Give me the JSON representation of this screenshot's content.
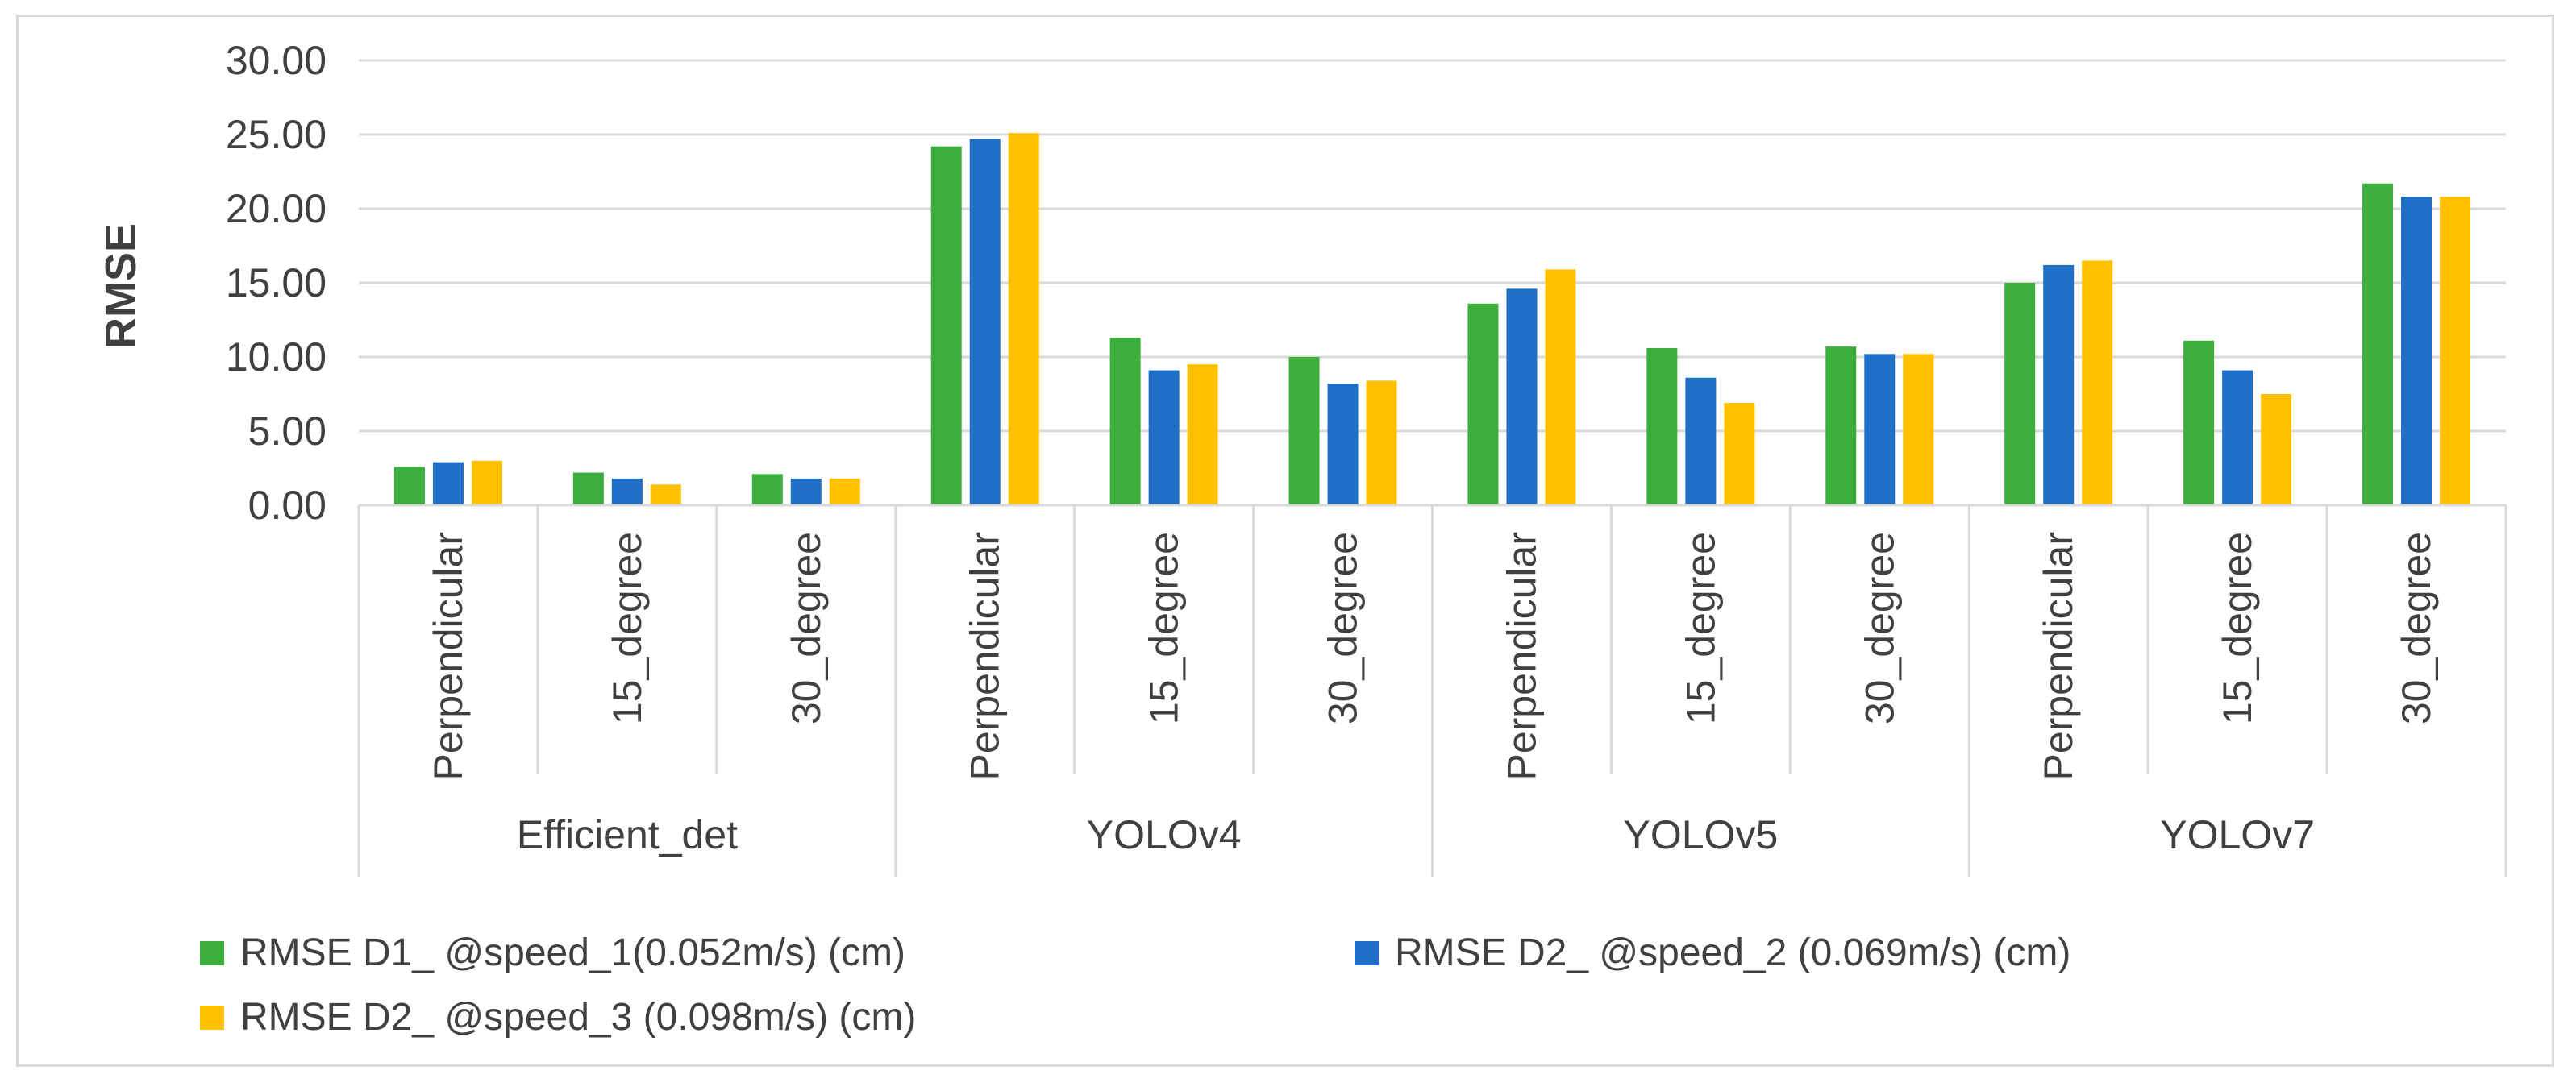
{
  "chart_data": {
    "type": "bar",
    "title": "",
    "xlabel": "",
    "ylabel": "RMSE",
    "ylim": [
      0,
      30
    ],
    "yticks": [
      "0.00",
      "5.00",
      "10.00",
      "15.00",
      "20.00",
      "25.00",
      "30.00"
    ],
    "grid": true,
    "legend_position": "bottom",
    "groups": [
      {
        "name": "Efficient_det",
        "categories": [
          "Perpendicular",
          "15_degree",
          "30_degree"
        ]
      },
      {
        "name": "YOLOv4",
        "categories": [
          "Perpendicular",
          "15_degree",
          "30_degree"
        ]
      },
      {
        "name": "YOLOv5",
        "categories": [
          "Perpendicular",
          "15_degree",
          "30_degree"
        ]
      },
      {
        "name": "YOLOv7",
        "categories": [
          "Perpendicular",
          "15_degree",
          "30_degree"
        ]
      }
    ],
    "series": [
      {
        "name": "RMSE D1_ @speed_1(0.052m/s) (cm)",
        "color": "#3cae3c",
        "values": [
          2.6,
          2.2,
          2.1,
          24.2,
          11.3,
          10.0,
          13.6,
          10.6,
          10.7,
          15.0,
          11.1,
          21.7
        ]
      },
      {
        "name": "RMSE D2_ @speed_2 (0.069m/s) (cm)",
        "color": "#1f6fc6",
        "values": [
          2.9,
          1.8,
          1.8,
          24.7,
          9.1,
          8.2,
          14.6,
          8.6,
          10.2,
          16.2,
          9.1,
          20.8
        ]
      },
      {
        "name": "RMSE D2_ @speed_3 (0.098m/s) (cm)",
        "color": "#ffc000",
        "values": [
          3.0,
          1.4,
          1.8,
          25.1,
          9.5,
          8.4,
          15.9,
          6.9,
          10.2,
          16.5,
          7.5,
          20.8
        ]
      }
    ]
  }
}
